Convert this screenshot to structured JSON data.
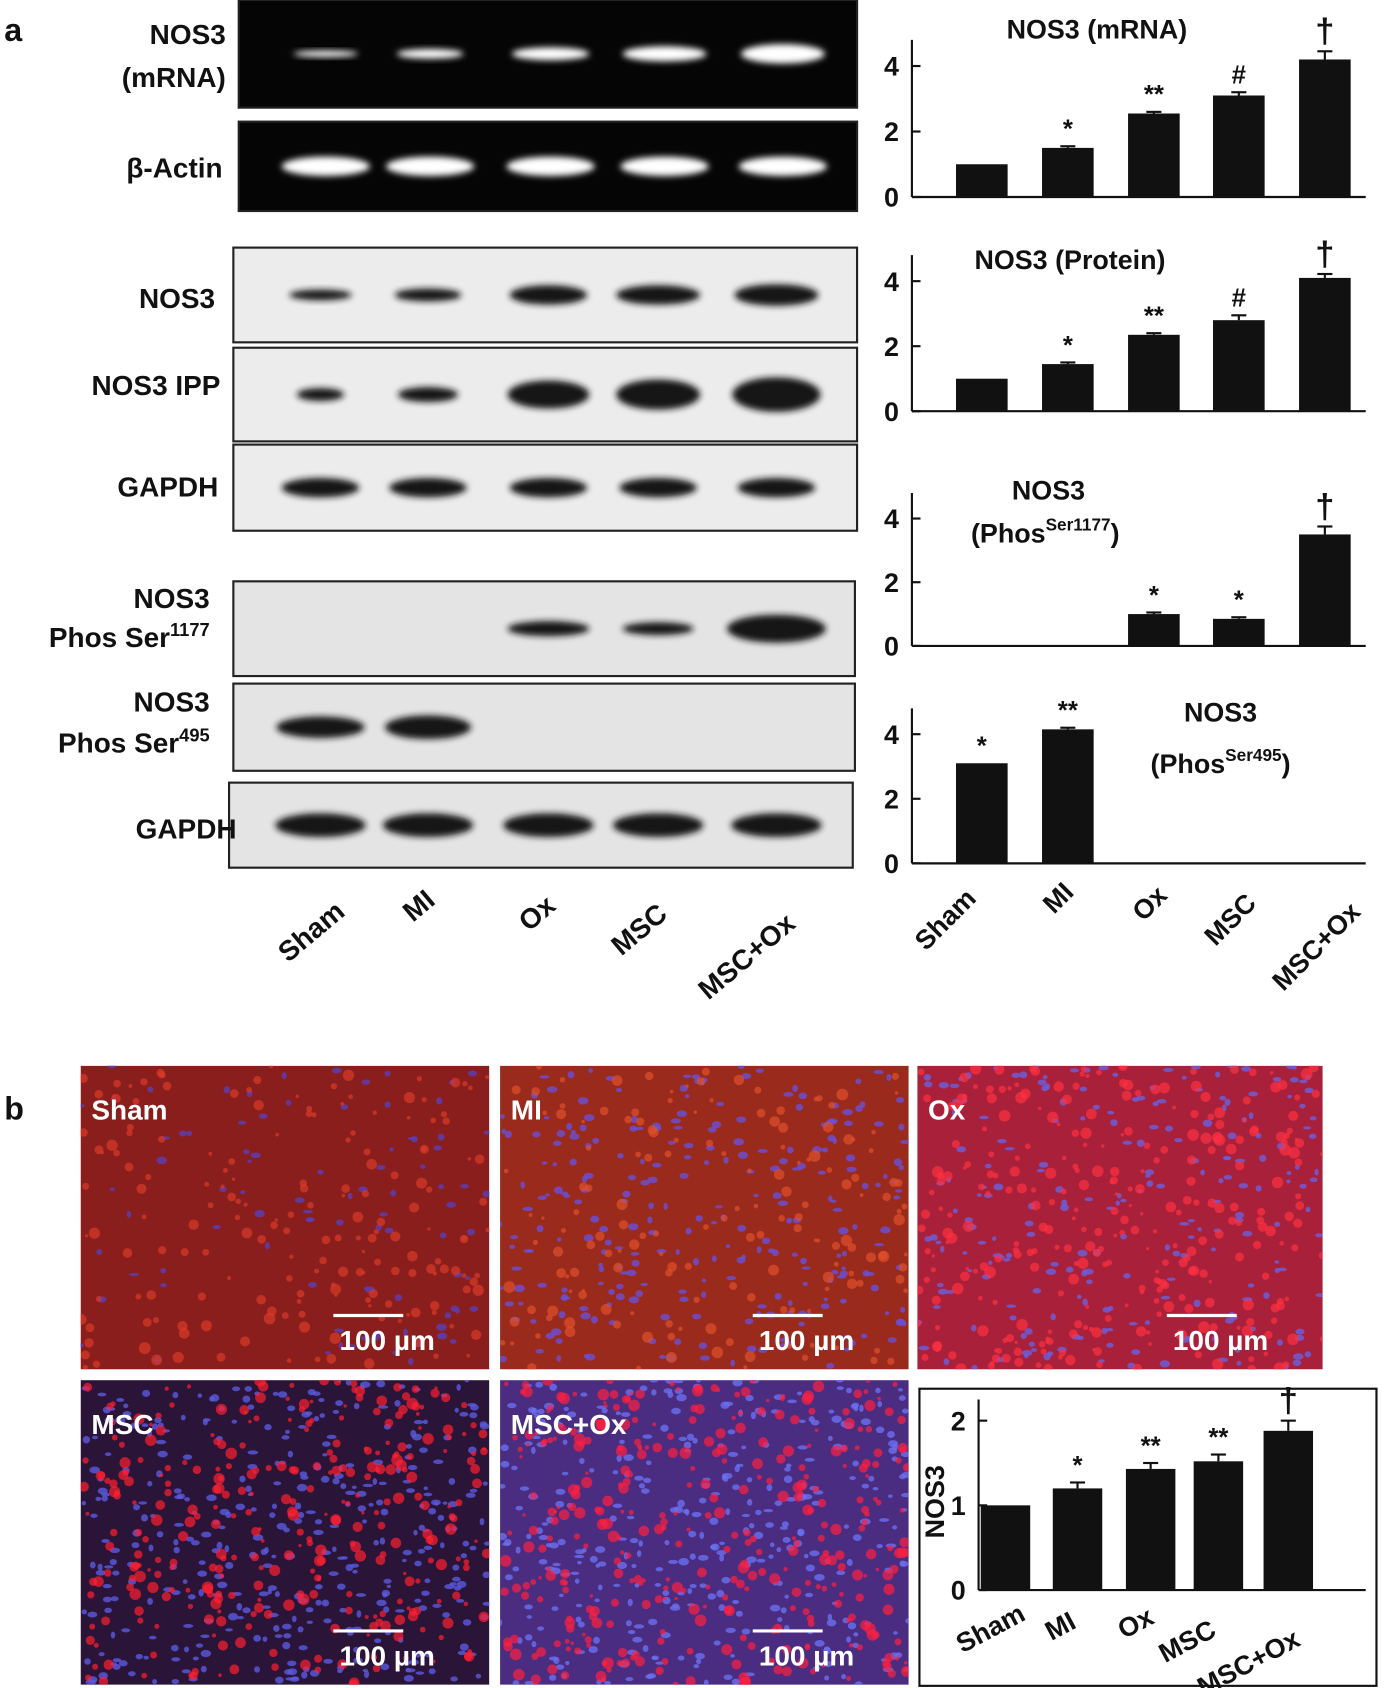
{
  "panel_labels": [
    "a",
    "b"
  ],
  "blots": [
    {
      "label_1": "NOS3",
      "label_2": "(mRNA)"
    },
    {
      "label_1": "β-Actin"
    },
    {
      "label_1": "NOS3"
    },
    {
      "label_1": "NOS3 IPP"
    },
    {
      "label_1": "GAPDH"
    },
    {
      "label_1": "NOS3",
      "label_2": "Phos Ser",
      "label_sup": "1177"
    },
    {
      "label_1": "NOS3",
      "label_2": "Phos Ser",
      "label_sup": "495"
    },
    {
      "label_1": "GAPDH"
    }
  ],
  "lanes": [
    "Sham",
    "MI",
    "Ox",
    "MSC",
    "MSC+Ox"
  ],
  "chart_data": [
    {
      "type": "bar",
      "title": "NOS3 (mRNA)",
      "values": [
        1.0,
        1.5,
        2.55,
        3.1,
        4.2
      ],
      "errors": [
        0,
        0.05,
        0.05,
        0.1,
        0.25
      ],
      "annotations": [
        null,
        "*",
        "**",
        "#",
        "†"
      ],
      "color": "#111111",
      "ylim": [
        0,
        4.8
      ],
      "yticks": [
        0,
        2,
        4
      ]
    },
    {
      "type": "bar",
      "title": "NOS3 (Protein)",
      "values": [
        1.0,
        1.45,
        2.35,
        2.8,
        4.1
      ],
      "errors": [
        0,
        0.05,
        0.05,
        0.15,
        0.12
      ],
      "annotations": [
        null,
        "*",
        "**",
        "#",
        "†"
      ],
      "color": "#111111",
      "ylim": [
        0,
        4.8
      ],
      "yticks": [
        0,
        2,
        4
      ]
    },
    {
      "type": "bar",
      "title": "NOS3",
      "subtitle": "(Phos",
      "subtitle_sup": "Ser1177",
      "subtitle_end": ")",
      "values": [
        0,
        0,
        1.0,
        0.85,
        3.5
      ],
      "errors": [
        0,
        0,
        0.05,
        0.05,
        0.25
      ],
      "annotations": [
        null,
        null,
        "*",
        "*",
        "†"
      ],
      "color": "#111111",
      "ylim": [
        0,
        4.8
      ],
      "yticks": [
        0,
        2,
        4
      ]
    },
    {
      "type": "bar",
      "title": "NOS3",
      "subtitle": "(Phos",
      "subtitle_sup": "Ser495",
      "subtitle_end": ")",
      "categories": [
        "Sham",
        "MI",
        "Ox",
        "MSC",
        "MSC+Ox"
      ],
      "values": [
        3.1,
        4.15,
        0,
        0,
        0
      ],
      "errors": [
        0,
        0.05,
        0,
        0,
        0
      ],
      "annotations": [
        "*",
        "**",
        null,
        null,
        null
      ],
      "color": "#111111",
      "ylim": [
        0,
        4.8
      ],
      "yticks": [
        0,
        2,
        4
      ]
    },
    {
      "type": "bar",
      "ylabel": "NOS3",
      "categories": [
        "Sham",
        "MI",
        "Ox",
        "MSC",
        "MSC+Ox"
      ],
      "values": [
        1.0,
        1.2,
        1.43,
        1.52,
        1.88
      ],
      "errors": [
        0,
        0.07,
        0.07,
        0.08,
        0.12
      ],
      "annotations": [
        null,
        "*",
        "**",
        "**",
        "†"
      ],
      "color": "#111111",
      "ylim": [
        0,
        2.25
      ],
      "yticks": [
        0,
        1,
        2
      ]
    }
  ],
  "images": [
    {
      "label": "Sham",
      "scale": "100 µm"
    },
    {
      "label": "MI",
      "scale": "100 µm"
    },
    {
      "label": "Ox",
      "scale": "100 µm"
    },
    {
      "label": "MSC",
      "scale": "100 µm"
    },
    {
      "label": "MSC+Ox",
      "scale": "100 µm"
    }
  ]
}
